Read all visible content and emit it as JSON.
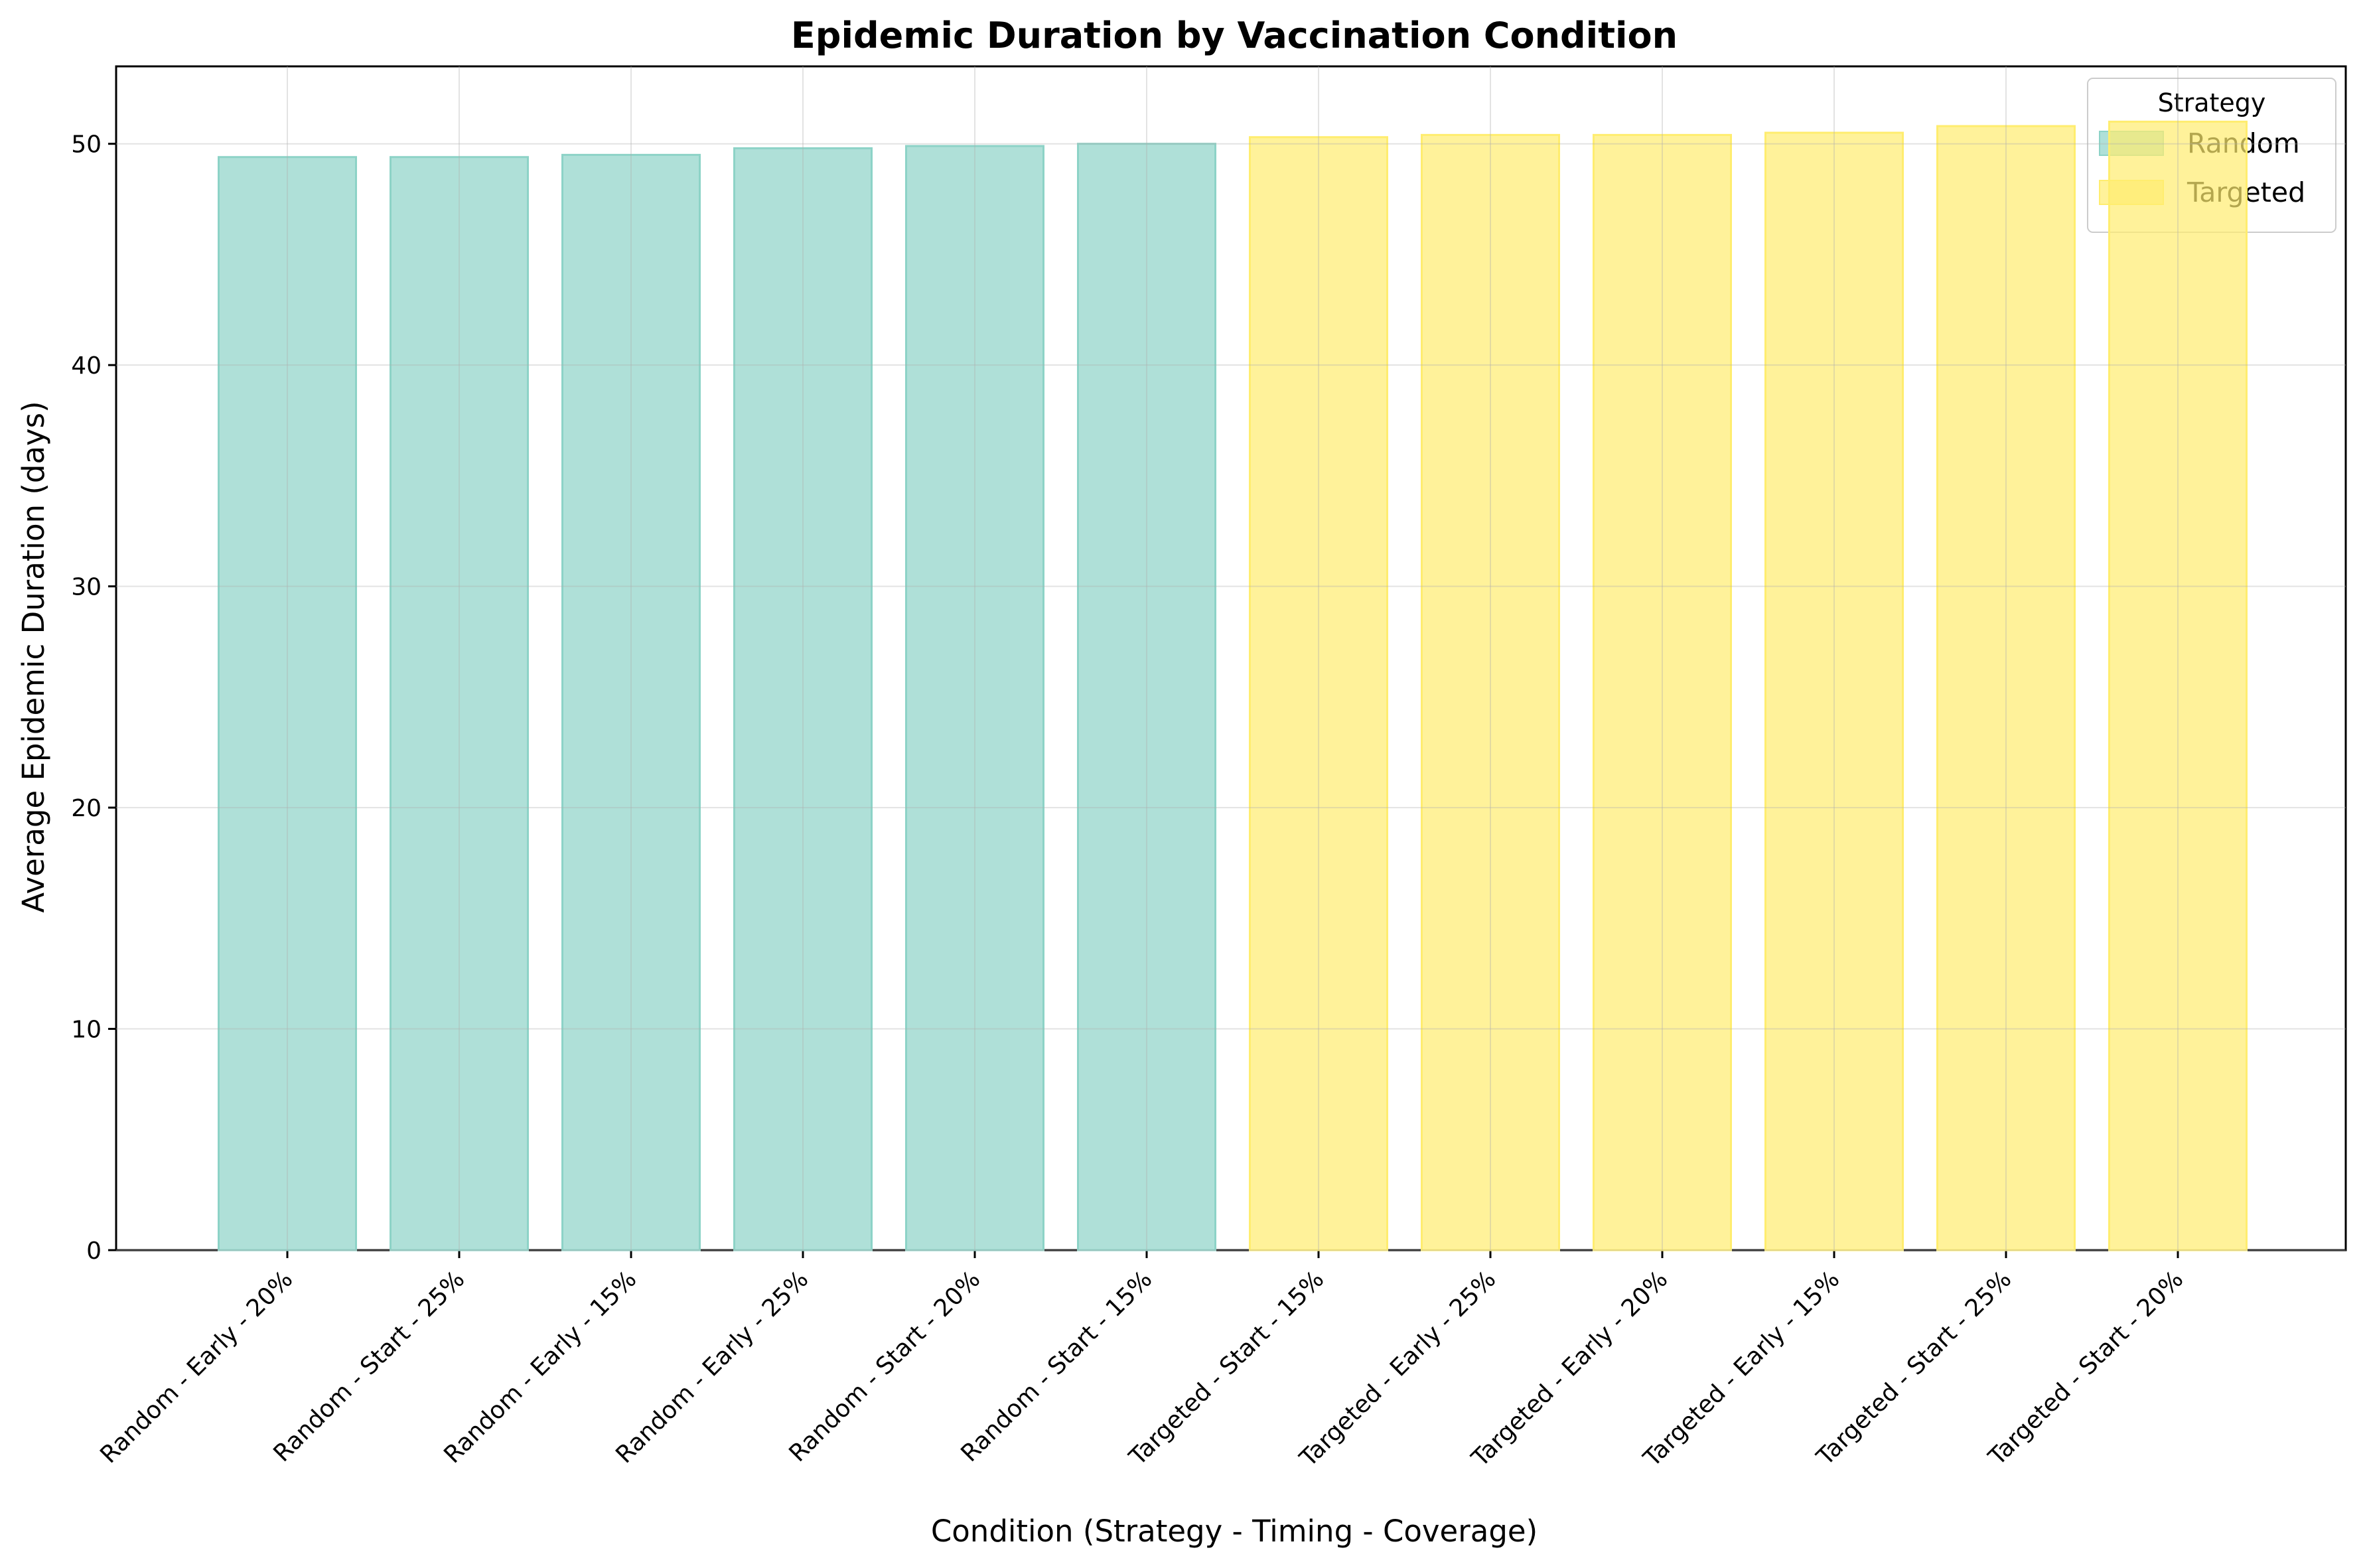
{
  "chart_data": {
    "type": "bar",
    "title": "Epidemic Duration by Vaccination Condition",
    "xlabel": "Condition (Strategy - Timing - Coverage)",
    "ylabel": "Average Epidemic Duration (days)",
    "ylim": [
      0,
      53.5
    ],
    "yticks": [
      "0",
      "10",
      "20",
      "30",
      "40",
      "50"
    ],
    "grid": true,
    "legend": {
      "title": "Strategy",
      "placement": "top-right",
      "entries": [
        {
          "name": "Random",
          "color": "#8dd3c7"
        },
        {
          "name": "Targeted",
          "color": "#ffed6f"
        }
      ]
    },
    "categories": [
      "Random - Early - 20%",
      "Random - Start - 25%",
      "Random - Early - 15%",
      "Random - Early - 25%",
      "Random - Start - 20%",
      "Random - Start - 15%",
      "Targeted - Start - 15%",
      "Targeted - Early - 25%",
      "Targeted - Early - 20%",
      "Targeted - Early - 15%",
      "Targeted - Start - 25%",
      "Targeted - Start - 20%"
    ],
    "values": [
      49.4,
      49.4,
      49.5,
      49.8,
      49.9,
      50.0,
      50.3,
      50.4,
      50.4,
      50.5,
      50.8,
      51.0
    ],
    "strategy": [
      "Random",
      "Random",
      "Random",
      "Random",
      "Random",
      "Random",
      "Targeted",
      "Targeted",
      "Targeted",
      "Targeted",
      "Targeted",
      "Targeted"
    ]
  }
}
